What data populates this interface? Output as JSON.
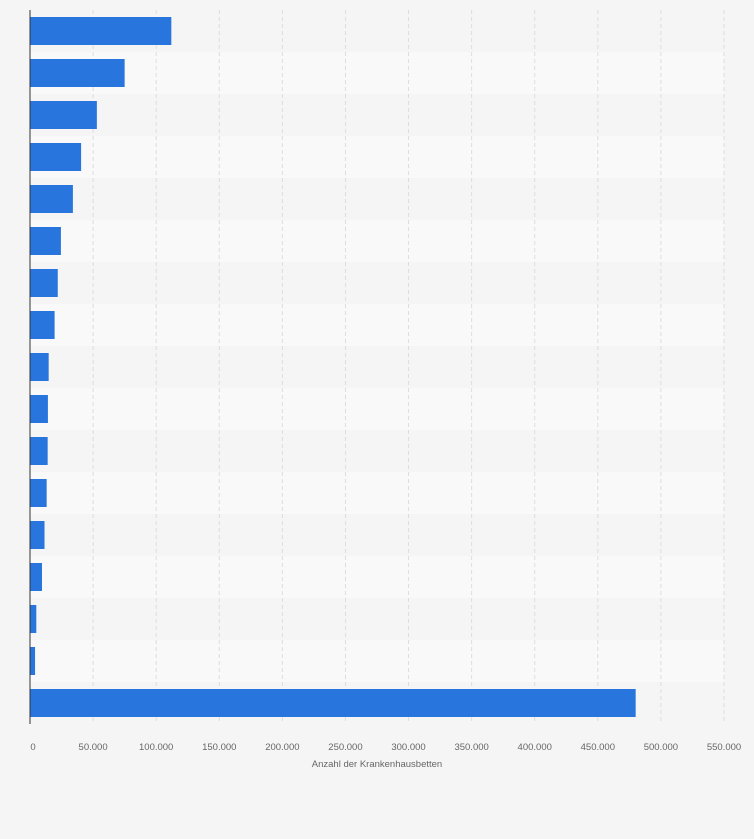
{
  "chart_data": {
    "type": "bar",
    "orientation": "horizontal",
    "categories": [
      "",
      "",
      "",
      "",
      "",
      "",
      "",
      "",
      "",
      "",
      "",
      "",
      "",
      "",
      "",
      "",
      ""
    ],
    "values": [
      112000,
      75000,
      53000,
      40500,
      34000,
      24500,
      22000,
      19500,
      14800,
      14200,
      14000,
      13200,
      11500,
      9500,
      5000,
      4000,
      480000
    ],
    "xlabel": "Anzahl der Krankenhausbetten",
    "ylabel": "",
    "xlim": [
      0,
      550000
    ],
    "xticks": [
      0,
      50000,
      100000,
      150000,
      200000,
      250000,
      300000,
      350000,
      400000,
      450000,
      500000,
      550000
    ],
    "xtick_labels": [
      "0",
      "50.000",
      "100.000",
      "150.000",
      "200.000",
      "250.000",
      "300.000",
      "350.000",
      "400.000",
      "450.000",
      "500.000",
      "550.000"
    ],
    "grid": true,
    "bar_color": "#2876dd",
    "band_colors": [
      "#f5f5f5",
      "#f9f9f9"
    ],
    "gridline_color": "#dddddd",
    "axis_color": "#333333"
  }
}
